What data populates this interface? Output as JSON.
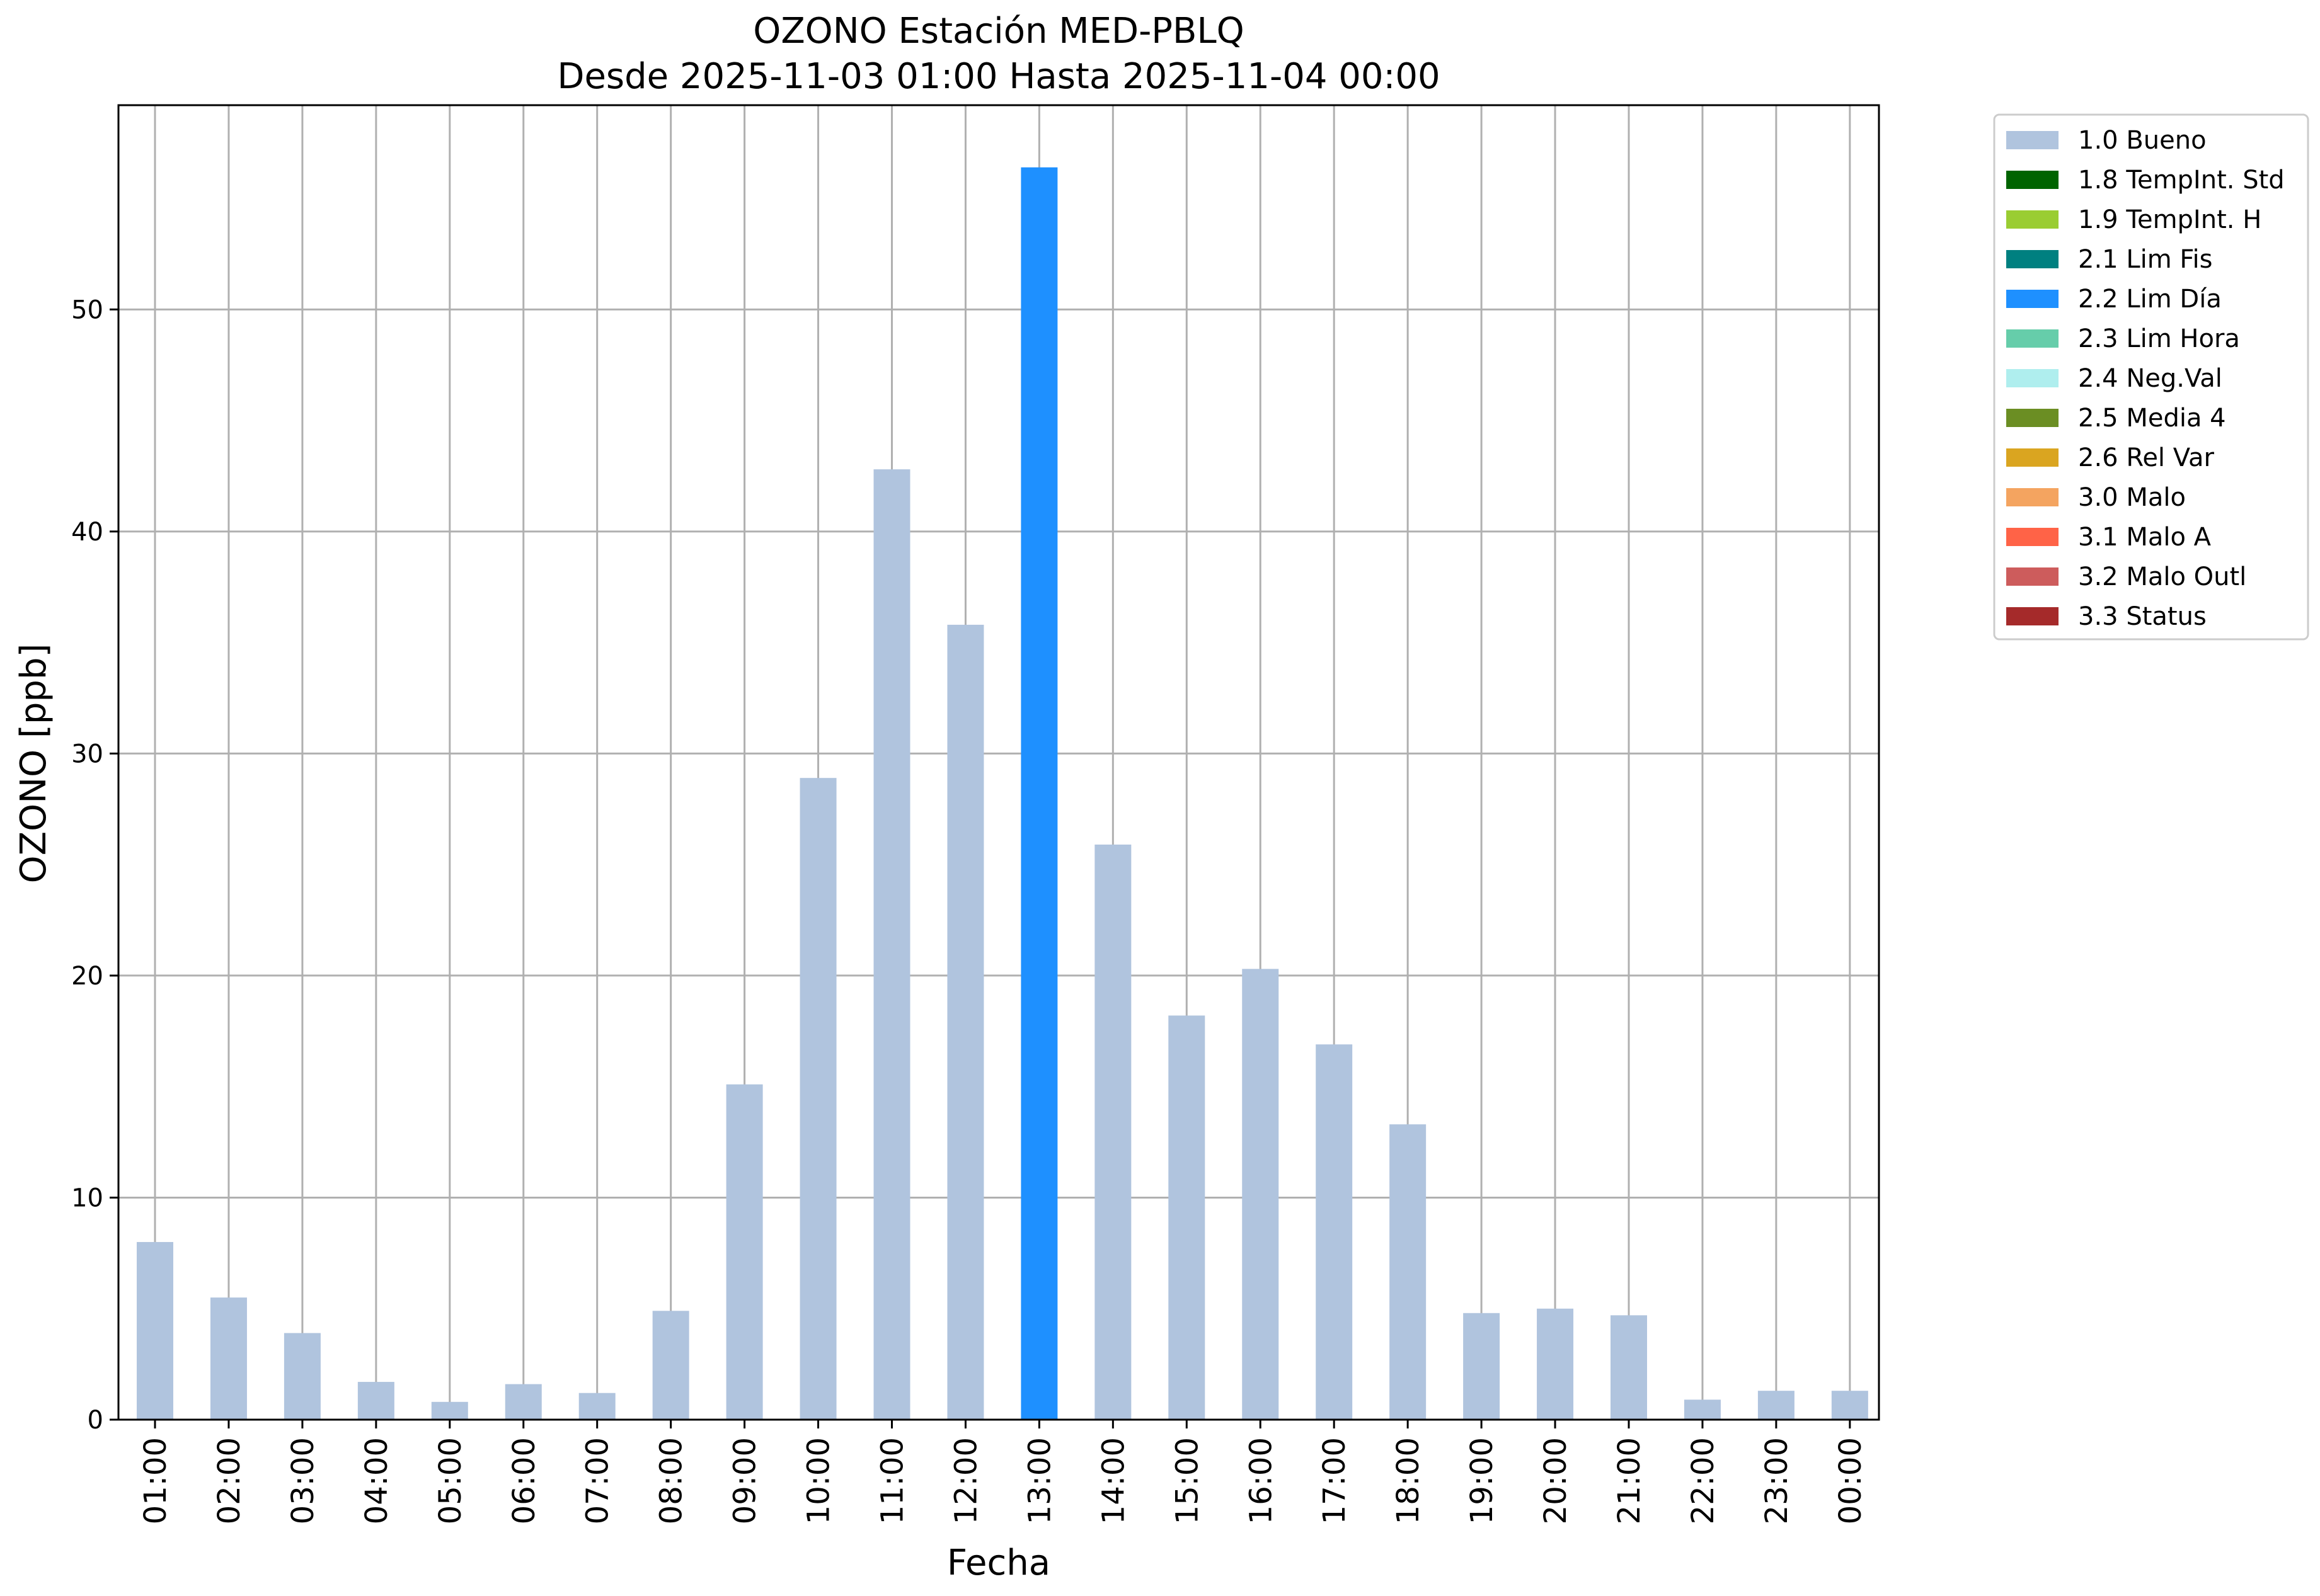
{
  "chart_data": {
    "type": "bar",
    "title": "OZONO Estación MED-PBLQ",
    "subtitle": "Desde 2025-11-03 01:00 Hasta 2025-11-04 00:00",
    "xlabel": "Fecha",
    "ylabel": "OZONO [ppb]",
    "ylim": [
      0,
      59.2
    ],
    "yticks": [
      0,
      10,
      20,
      30,
      40,
      50
    ],
    "grid": true,
    "legend_position": "outside-top-right",
    "categories": [
      "01:00",
      "02:00",
      "03:00",
      "04:00",
      "05:00",
      "06:00",
      "07:00",
      "08:00",
      "09:00",
      "10:00",
      "11:00",
      "12:00",
      "13:00",
      "14:00",
      "15:00",
      "16:00",
      "17:00",
      "18:00",
      "19:00",
      "20:00",
      "21:00",
      "22:00",
      "23:00",
      "00:00"
    ],
    "values": [
      8.0,
      5.5,
      3.9,
      1.7,
      0.8,
      1.6,
      1.2,
      4.9,
      15.1,
      28.9,
      42.8,
      35.8,
      56.4,
      25.9,
      18.2,
      20.3,
      16.9,
      13.3,
      4.8,
      5.0,
      4.7,
      0.9,
      1.3,
      1.3
    ],
    "flags": [
      "1.0 Bueno",
      "1.0 Bueno",
      "1.0 Bueno",
      "1.0 Bueno",
      "1.0 Bueno",
      "1.0 Bueno",
      "1.0 Bueno",
      "1.0 Bueno",
      "1.0 Bueno",
      "1.0 Bueno",
      "1.0 Bueno",
      "1.0 Bueno",
      "2.2 Lim Día",
      "1.0 Bueno",
      "1.0 Bueno",
      "1.0 Bueno",
      "1.0 Bueno",
      "1.0 Bueno",
      "1.0 Bueno",
      "1.0 Bueno",
      "1.0 Bueno",
      "1.0 Bueno",
      "1.0 Bueno",
      "1.0 Bueno"
    ],
    "legend": [
      {
        "label": "1.0 Bueno",
        "color": "#b0c4de"
      },
      {
        "label": "1.8 TempInt. Std",
        "color": "#006400"
      },
      {
        "label": "1.9 TempInt. H",
        "color": "#9acd32"
      },
      {
        "label": "2.1 Lim Fis",
        "color": "#008080"
      },
      {
        "label": "2.2 Lim Día",
        "color": "#1e90ff"
      },
      {
        "label": "2.3 Lim Hora",
        "color": "#66cdaa"
      },
      {
        "label": "2.4 Neg.Val",
        "color": "#afeeee"
      },
      {
        "label": "2.5 Media 4",
        "color": "#6b8e23"
      },
      {
        "label": "2.6 Rel Var",
        "color": "#daa520"
      },
      {
        "label": "3.0 Malo",
        "color": "#f4a460"
      },
      {
        "label": "3.1 Malo A",
        "color": "#ff6347"
      },
      {
        "label": "3.2 Malo Outl",
        "color": "#cd5c5c"
      },
      {
        "label": "3.3 Status",
        "color": "#a52a2a"
      }
    ]
  }
}
